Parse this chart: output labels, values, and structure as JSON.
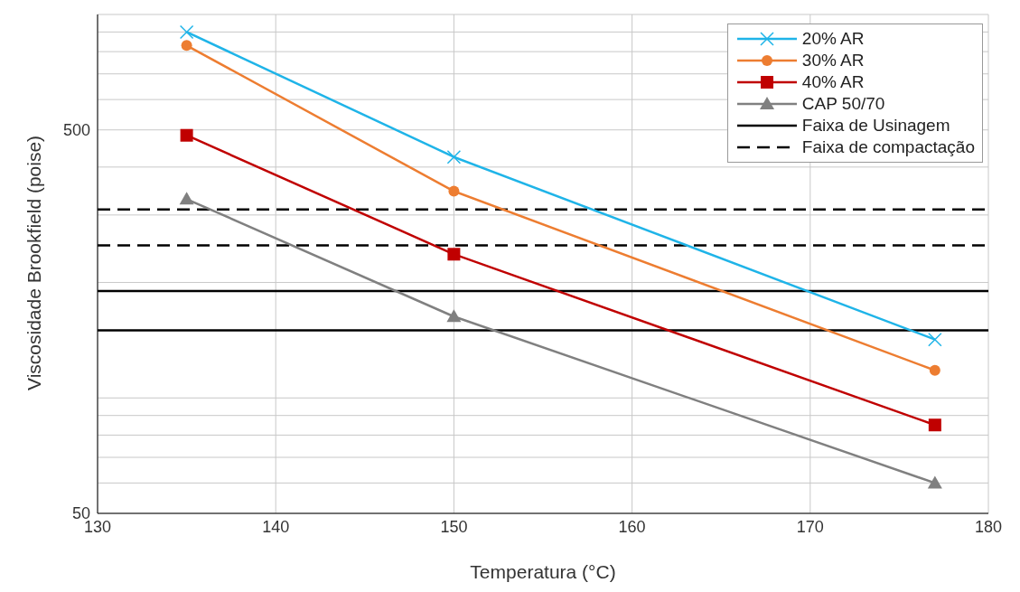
{
  "chart_data": {
    "type": "line",
    "xlabel": "Temperatura (°C)",
    "ylabel": "Viscosidade Brookfield (poise)",
    "x": [
      135,
      150,
      177
    ],
    "series": [
      {
        "name": "20% AR",
        "color": "#1fb4e8",
        "marker": "cross",
        "values": [
          900,
          425,
          142
        ]
      },
      {
        "name": "30% AR",
        "color": "#ed7d31",
        "marker": "circle",
        "values": [
          830,
          346,
          118
        ]
      },
      {
        "name": "40% AR",
        "color": "#c00000",
        "marker": "square",
        "values": [
          484,
          237,
          85
        ]
      },
      {
        "name": "CAP 50/70",
        "color": "#808080",
        "marker": "triangle",
        "values": [
          330,
          163,
          60
        ]
      }
    ],
    "ref_lines": [
      {
        "axis": "y",
        "value": 190,
        "label": "Faixa de Usinagem",
        "color": "#000000",
        "line_style": "solid"
      },
      {
        "axis": "y",
        "value": 150,
        "color": "#000000",
        "line_style": "solid"
      },
      {
        "axis": "y",
        "value": 310,
        "label": "Faixa de compactação",
        "color": "#000000",
        "line_style": "dashed"
      },
      {
        "axis": "y",
        "value": 250,
        "color": "#000000",
        "line_style": "dashed"
      }
    ],
    "xlim": [
      130,
      180
    ],
    "xticks": [
      130,
      140,
      150,
      160,
      170,
      180
    ],
    "ylim": [
      50,
      1000
    ],
    "yticks": [
      50,
      {
        "value": 60,
        "label": null
      },
      {
        "value": 70,
        "label": null
      },
      {
        "value": 80,
        "label": null
      },
      {
        "value": 90,
        "label": null
      },
      {
        "value": 100,
        "label": null
      },
      {
        "value": 200,
        "label": null
      },
      {
        "value": 300,
        "label": null
      },
      {
        "value": 400,
        "label": null
      },
      500,
      {
        "value": 600,
        "label": null
      },
      {
        "value": 700,
        "label": null
      },
      {
        "value": 800,
        "label": null
      },
      {
        "value": 900,
        "label": null
      },
      {
        "value": 1000,
        "label": null
      }
    ],
    "log": "y",
    "grid": true,
    "legend": "top right",
    "line_style": "solid"
  }
}
